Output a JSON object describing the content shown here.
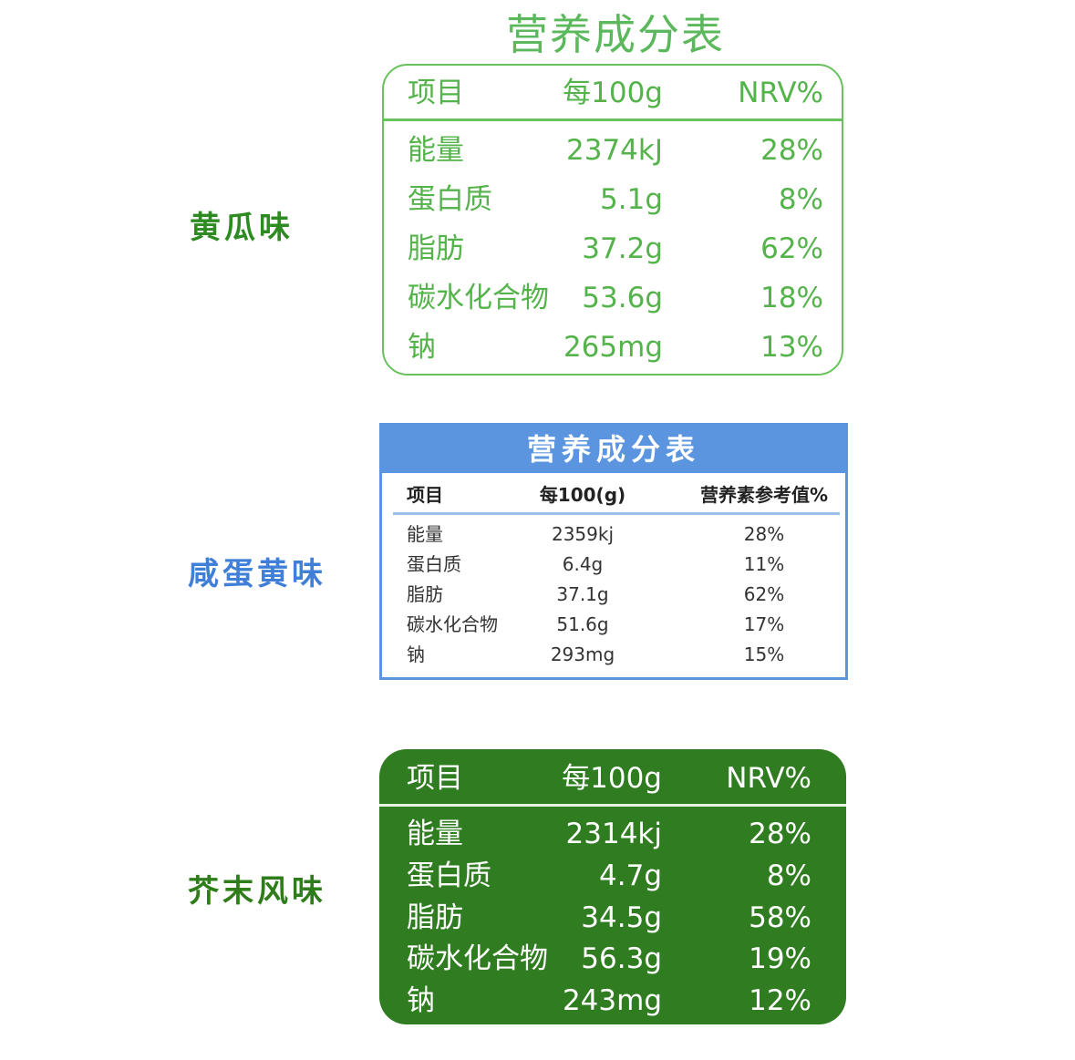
{
  "title": "营养成分表",
  "tables": [
    {
      "flavor": "黄瓜味",
      "headers": [
        "项目",
        "每100g",
        "NRV%"
      ],
      "rows": [
        [
          "能量",
          "2374kJ",
          "28%"
        ],
        [
          "蛋白质",
          "5.1g",
          "8%"
        ],
        [
          "脂肪",
          "37.2g",
          "62%"
        ],
        [
          "碳水化合物",
          "53.6g",
          "18%"
        ],
        [
          "钠",
          "265mg",
          "13%"
        ]
      ]
    },
    {
      "flavor": "咸蛋黄味",
      "banner": "营养成分表",
      "headers": [
        "项目",
        "每100(g)",
        "营养素参考值%"
      ],
      "rows": [
        [
          "能量",
          "2359kj",
          "28%"
        ],
        [
          "蛋白质",
          "6.4g",
          "11%"
        ],
        [
          "脂肪",
          "37.1g",
          "62%"
        ],
        [
          "碳水化合物",
          "51.6g",
          "17%"
        ],
        [
          "钠",
          "293mg",
          "15%"
        ]
      ]
    },
    {
      "flavor": "芥末风味",
      "headers": [
        "项目",
        "每100g",
        "NRV%"
      ],
      "rows": [
        [
          "能量",
          "2314kj",
          "28%"
        ],
        [
          "蛋白质",
          "4.7g",
          "8%"
        ],
        [
          "脂肪",
          "34.5g",
          "58%"
        ],
        [
          "碳水化合物",
          "56.3g",
          "19%"
        ],
        [
          "钠",
          "243mg",
          "12%"
        ]
      ]
    }
  ],
  "colors": {
    "green_light": "#67c25c",
    "blue": "#5b94df",
    "green_dark": "#2f7d20"
  }
}
